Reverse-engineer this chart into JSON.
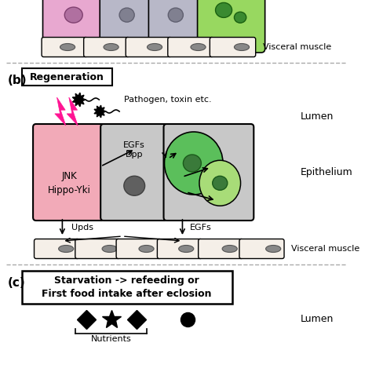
{
  "bg_color": "#ffffff",
  "dashed_line_color": "#aaaaaa",
  "panel_b_label": "(b)",
  "regen_box_text": "Regeneration",
  "pathogen_text": "Pathogen, toxin etc.",
  "lumen_text": "Lumen",
  "epithelium_text": "Epithelium",
  "visceral_muscle_text": "Visceral muscle",
  "egfs_dpp_text": "EGFs\nDpp",
  "jnk_hippo_text": "JNK\nHippo-Yki",
  "upds_text": "Upds",
  "egfs_text": "EGFs",
  "panel_c_label": "(c)",
  "starvation_box_text": "Starvation -> refeeding or\nFirst food intake after eclosion",
  "nutrients_text": "Nutrients",
  "lumen_c_text": "Lumen",
  "dying_cell_color": "#f2aab8",
  "ec_cell_color": "#c8c8c8",
  "isc_color": "#5bbf5b",
  "eb_color": "#a8dc78",
  "lightning_color": "#ff1493",
  "visceral_muscle_fill": "#f5efe8",
  "visceral_muscle_oval": "#888888",
  "top_pink_cell_color": "#e8a8d0",
  "top_gray_cell_color": "#b8b8c8",
  "top_green_cell_color": "#98d860"
}
